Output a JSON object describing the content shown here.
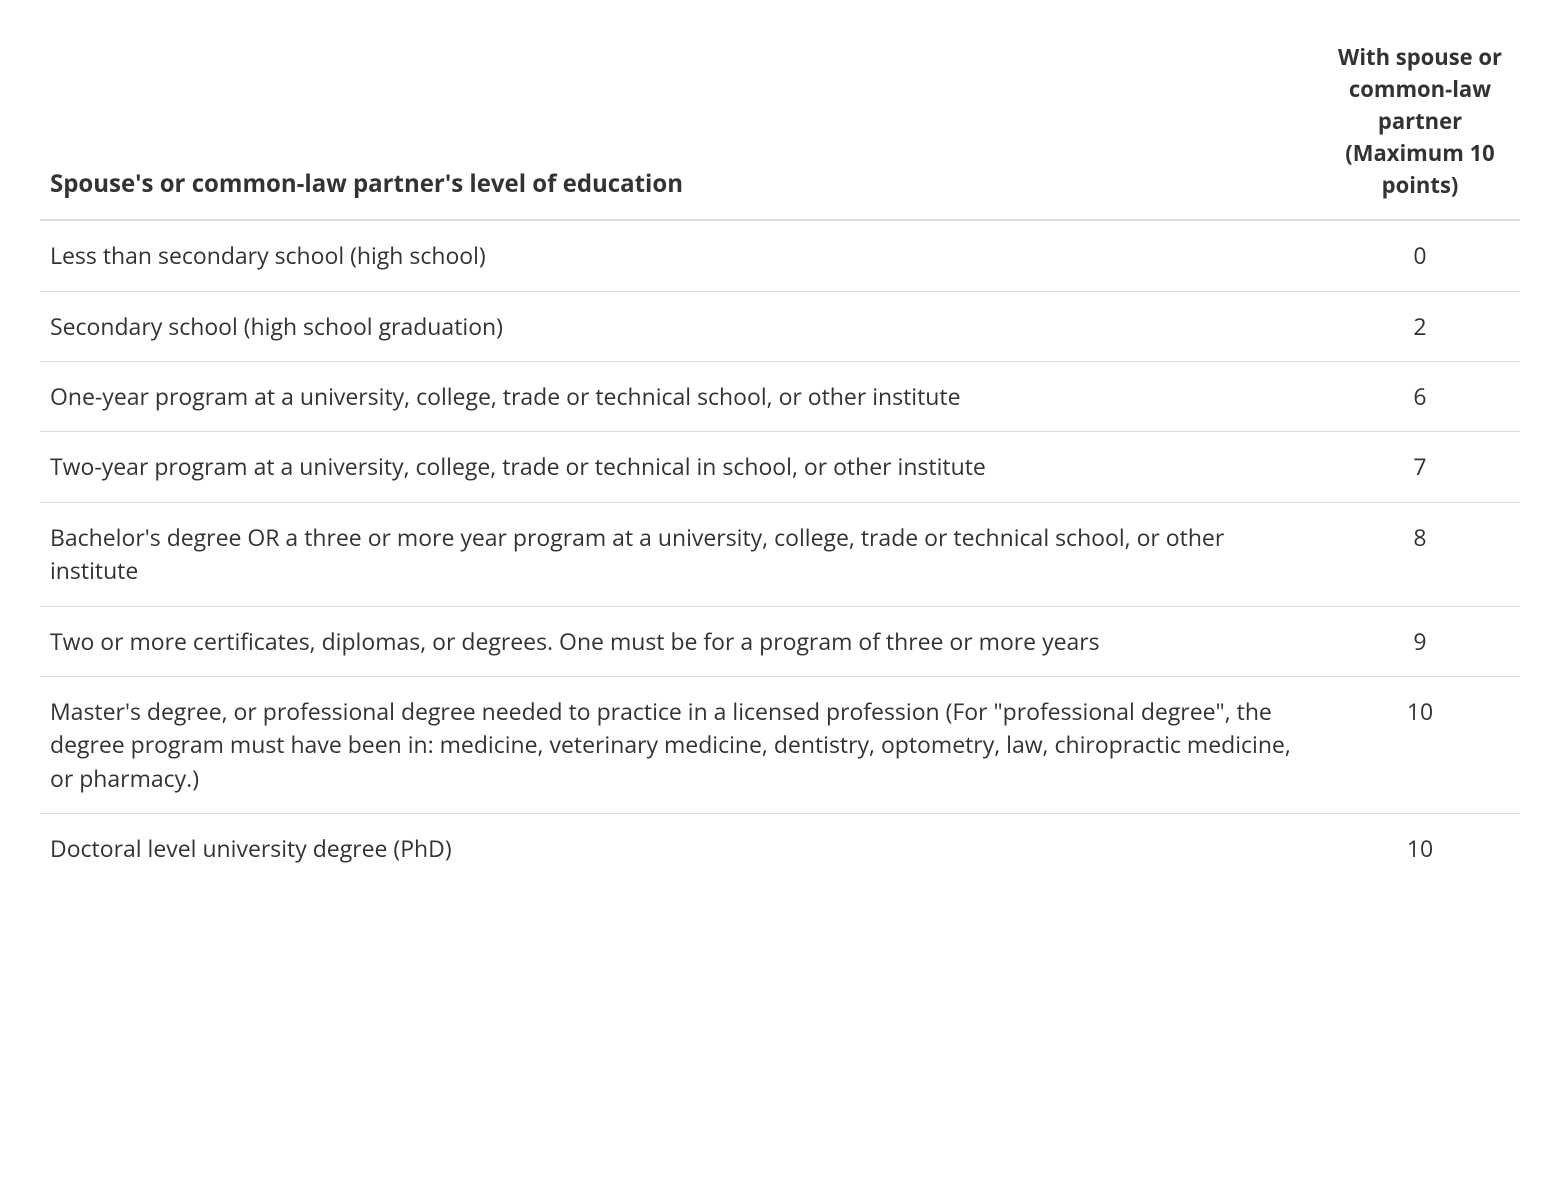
{
  "table": {
    "headers": {
      "education": "Spouse's or common-law partner's level of education",
      "points": "With spouse or common-law partner\n(Maximum 10 points)"
    },
    "rows": [
      {
        "education": "Less than secondary school (high school)",
        "points": "0"
      },
      {
        "education": "Secondary school (high school graduation)",
        "points": "2"
      },
      {
        "education": "One-year program at a university, college, trade or technical school, or other institute",
        "points": "6"
      },
      {
        "education": "Two-year program at a university, college, trade or technical in school, or other institute",
        "points": "7"
      },
      {
        "education": "Bachelor's degree OR  a three or more year program at a university, college, trade or technical school, or other institute",
        "points": "8"
      },
      {
        "education": "Two or more certificates, diplomas, or degrees. One must be for a program of three or more years",
        "points": "9"
      },
      {
        "education": "Master's degree, or professional degree needed to practice in a licensed profession (For \"professional degree\", the degree program must have been in: medicine, veterinary medicine, dentistry, optometry, law, chiropractic medicine, or pharmacy.)",
        "points": "10"
      },
      {
        "education": "Doctoral level university degree (PhD)",
        "points": "10"
      }
    ],
    "styling": {
      "header_font_size": 24,
      "header_font_weight": 700,
      "body_font_size": 23,
      "text_color": "#333333",
      "background_color": "#ffffff",
      "border_color": "#dddddd",
      "header_border_bottom_width": 2,
      "row_border_top_width": 1,
      "points_column_width": 200,
      "points_alignment": "center",
      "line_height": 1.45
    }
  }
}
